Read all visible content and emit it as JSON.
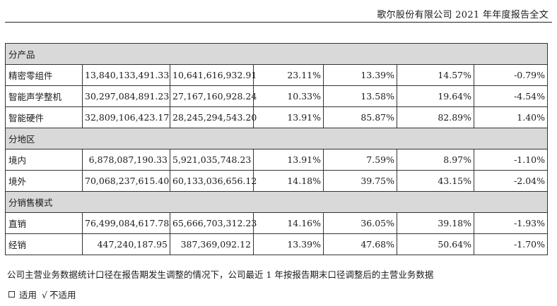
{
  "header": {
    "title": "歌尔股份有限公司 2021 年年度报告全文"
  },
  "table": {
    "sections": [
      {
        "name": "分产品",
        "rows": [
          [
            "精密零组件",
            "13,840,133,491.33",
            "10,641,616,932.91",
            "23.11%",
            "13.39%",
            "14.57%",
            "-0.79%"
          ],
          [
            "智能声学整机",
            "30,297,084,891.23",
            "27,167,160,928.24",
            "10.33%",
            "13.58%",
            "19.64%",
            "-4.54%"
          ],
          [
            "智能硬件",
            "32,809,106,423.17",
            "28,245,294,543.20",
            "13.91%",
            "85.87%",
            "82.89%",
            "1.40%"
          ]
        ]
      },
      {
        "name": "分地区",
        "rows": [
          [
            "境内",
            "6,878,087,190.33",
            "5,921,035,748.23",
            "13.91%",
            "7.59%",
            "8.97%",
            "-1.10%"
          ],
          [
            "境外",
            "70,068,237,615.40",
            "60,133,036,656.12",
            "14.18%",
            "39.75%",
            "43.15%",
            "-2.04%"
          ]
        ]
      },
      {
        "name": "分销售模式",
        "rows": [
          [
            "直销",
            "76,499,084,617.78",
            "65,666,703,312.23",
            "14.16%",
            "36.05%",
            "39.18%",
            "-1.93%"
          ],
          [
            "经销",
            "447,240,187.95",
            "387,369,092.12",
            "13.39%",
            "47.68%",
            "50.64%",
            "-1.70%"
          ]
        ]
      }
    ]
  },
  "note": {
    "text": "公司主营业务数据统计口径在报告期发生调整的情况下，公司最近 1 年按报告期末口径调整后的主营业务数据"
  },
  "options": {
    "applicable": "适用",
    "check_mark": "√",
    "not_applicable": "不适用"
  }
}
